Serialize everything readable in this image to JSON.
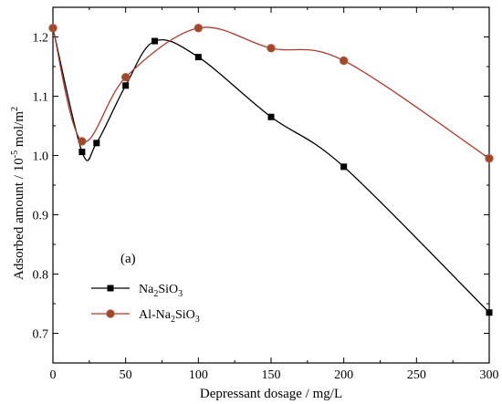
{
  "chart_data": {
    "type": "scatter",
    "title": "",
    "xlabel": "Depressant dosage / mg/L",
    "ylabel_main": "Adsorbed amount / 10",
    "ylabel_exp": "-5",
    "ylabel_unit": " mol/m",
    "ylabel_unit_exp": "2",
    "xlim": [
      0,
      300
    ],
    "ylim": [
      0.65,
      1.25
    ],
    "xticks": [
      0,
      50,
      100,
      150,
      200,
      250,
      300
    ],
    "xtick_labels": [
      "0",
      "50",
      "100",
      "150",
      "200",
      "250",
      "300"
    ],
    "yticks": [
      0.7,
      0.8,
      0.9,
      1.0,
      1.1,
      1.2
    ],
    "ytick_labels": [
      "0.7",
      "0.8",
      "0.9",
      "1.0",
      "1.1",
      "1.2"
    ],
    "annotation": "(a)",
    "grid": false,
    "legend_position": "bottom-left",
    "series": [
      {
        "name_parts": [
          "Na",
          "2",
          "SiO",
          "3",
          ""
        ],
        "marker": "square",
        "color": "#000000",
        "marker_color": "#000000",
        "x": [
          0,
          20,
          30,
          50,
          70,
          100,
          150,
          200,
          300
        ],
        "y": [
          1.215,
          1.006,
          1.021,
          1.118,
          1.193,
          1.166,
          1.065,
          0.981,
          0.735
        ]
      },
      {
        "name_parts": [
          "Al-Na",
          "2",
          "SiO",
          "3",
          ""
        ],
        "marker": "circle",
        "color": "#b03a2e",
        "marker_color": "#9c4a2a",
        "x": [
          0,
          20,
          50,
          100,
          150,
          200,
          300
        ],
        "y": [
          1.215,
          1.024,
          1.132,
          1.215,
          1.181,
          1.16,
          0.995
        ]
      }
    ]
  }
}
